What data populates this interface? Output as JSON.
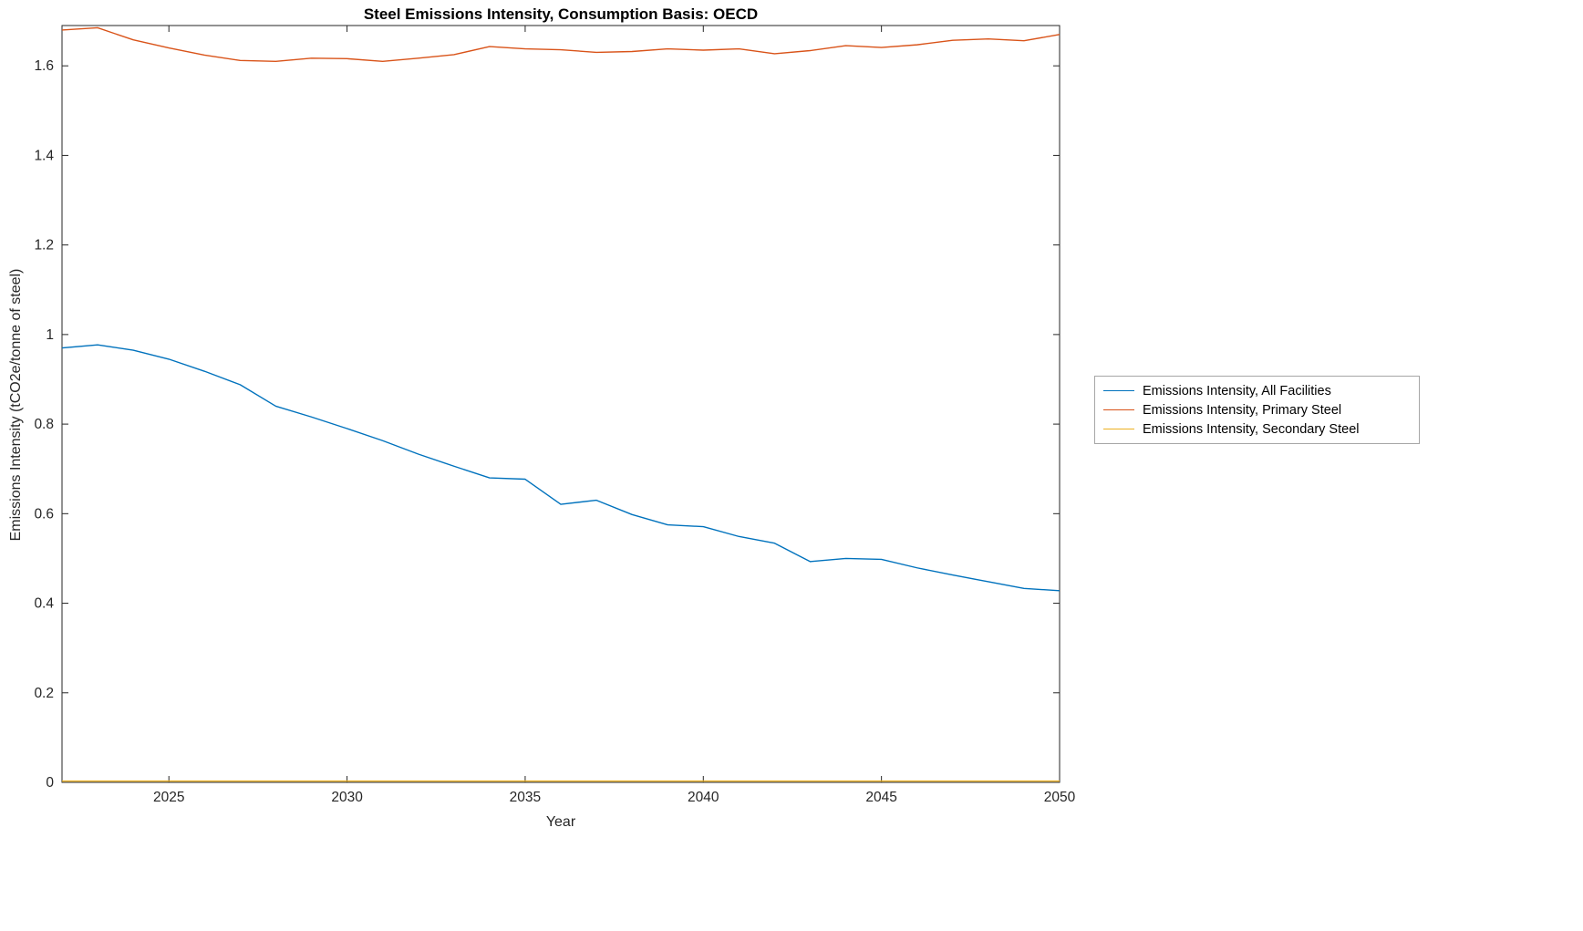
{
  "chart_data": {
    "type": "line",
    "title": "Steel Emissions Intensity, Consumption Basis: OECD",
    "xlabel": "Year",
    "ylabel": "Emissions Intensity (tCO2e/tonne of steel)",
    "xlim": [
      2022,
      2050
    ],
    "ylim": [
      0,
      1.69
    ],
    "xticks": [
      2025,
      2030,
      2035,
      2040,
      2045,
      2050
    ],
    "yticks": [
      0,
      0.2,
      0.4,
      0.6,
      0.8,
      1,
      1.2,
      1.4,
      1.6
    ],
    "grid": false,
    "legend_position": "right-outside",
    "axis_color": "#262626",
    "x": [
      2022,
      2023,
      2024,
      2025,
      2026,
      2027,
      2028,
      2029,
      2030,
      2031,
      2032,
      2033,
      2034,
      2035,
      2036,
      2037,
      2038,
      2039,
      2040,
      2041,
      2042,
      2043,
      2044,
      2045,
      2046,
      2047,
      2048,
      2049,
      2050
    ],
    "series": [
      {
        "name": "Emissions Intensity, All Facilities",
        "color": "#0072BD",
        "values": [
          0.97,
          0.977,
          0.965,
          0.945,
          0.918,
          0.888,
          0.84,
          0.816,
          0.79,
          0.763,
          0.733,
          0.706,
          0.68,
          0.677,
          0.621,
          0.63,
          0.598,
          0.575,
          0.571,
          0.549,
          0.534,
          0.493,
          0.5,
          0.498,
          0.479,
          0.463,
          0.448,
          0.433,
          0.428
        ]
      },
      {
        "name": "Emissions Intensity, Primary Steel",
        "color": "#D95319",
        "values": [
          1.68,
          1.685,
          1.658,
          1.64,
          1.624,
          1.612,
          1.61,
          1.617,
          1.616,
          1.61,
          1.617,
          1.625,
          1.643,
          1.638,
          1.636,
          1.63,
          1.632,
          1.638,
          1.635,
          1.638,
          1.627,
          1.634,
          1.645,
          1.641,
          1.647,
          1.657,
          1.66,
          1.656,
          1.67
        ]
      },
      {
        "name": "Emissions Intensity, Secondary Steel",
        "color": "#EDB120",
        "values": [
          0.003,
          0.003,
          0.003,
          0.003,
          0.003,
          0.003,
          0.003,
          0.003,
          0.003,
          0.003,
          0.003,
          0.003,
          0.003,
          0.003,
          0.003,
          0.003,
          0.003,
          0.003,
          0.003,
          0.003,
          0.003,
          0.003,
          0.003,
          0.003,
          0.003,
          0.003,
          0.003,
          0.003,
          0.003
        ]
      }
    ]
  }
}
